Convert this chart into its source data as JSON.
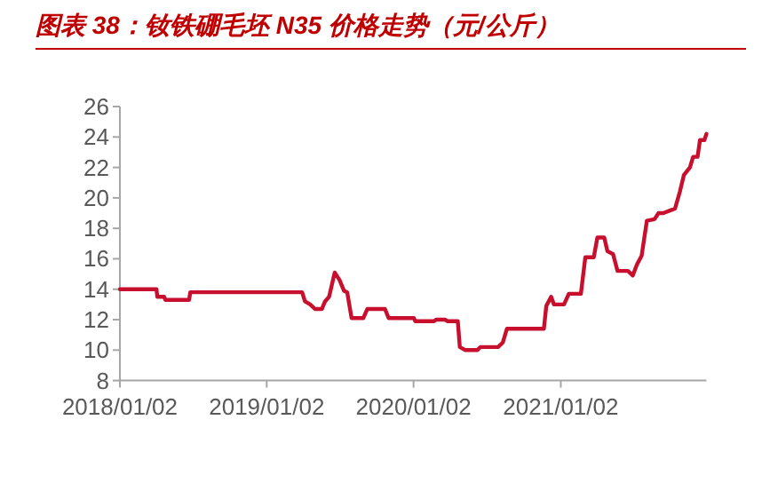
{
  "chart_data": {
    "type": "line",
    "title": "图表 38：钕铁硼毛坯 N35 价格走势（元/公斤）",
    "x": [
      "2018-01-02",
      "2018-04-03",
      "2018-04-05",
      "2018-04-22",
      "2018-04-25",
      "2018-06-23",
      "2018-06-26",
      "2019-03-31",
      "2019-04-07",
      "2019-04-20",
      "2019-05-02",
      "2019-05-19",
      "2019-05-27",
      "2019-06-06",
      "2019-06-20",
      "2019-07-02",
      "2019-07-13",
      "2019-07-21",
      "2019-08-01",
      "2019-08-30",
      "2019-09-09",
      "2019-10-23",
      "2019-11-01",
      "2020-01-03",
      "2020-01-06",
      "2020-02-22",
      "2020-02-27",
      "2020-03-20",
      "2020-03-27",
      "2020-04-21",
      "2020-04-26",
      "2020-05-10",
      "2020-06-09",
      "2020-06-16",
      "2020-07-30",
      "2020-08-11",
      "2020-08-21",
      "2020-11-21",
      "2020-11-27",
      "2020-12-09",
      "2020-12-16",
      "2021-01-10",
      "2021-01-22",
      "2021-02-21",
      "2021-03-04",
      "2021-03-25",
      "2021-04-03",
      "2021-04-20",
      "2021-04-28",
      "2021-05-12",
      "2021-05-23",
      "2021-06-18",
      "2021-06-30",
      "2021-07-10",
      "2021-07-22",
      "2021-08-04",
      "2021-08-23",
      "2021-09-02",
      "2021-09-14",
      "2021-10-13",
      "2021-10-25",
      "2021-11-04",
      "2021-11-19",
      "2021-11-27",
      "2021-12-08",
      "2021-12-14",
      "2021-12-25",
      "2021-12-30"
    ],
    "series": [
      {
        "color": "#c8102e",
        "values": [
          14.0,
          14.0,
          13.5,
          13.5,
          13.3,
          13.3,
          13.8,
          13.8,
          13.2,
          13.0,
          12.7,
          12.7,
          13.2,
          13.5,
          15.1,
          14.6,
          13.9,
          13.8,
          12.1,
          12.1,
          12.7,
          12.7,
          12.1,
          12.1,
          11.9,
          11.9,
          12.0,
          12.0,
          11.9,
          11.9,
          10.2,
          10.0,
          10.0,
          10.2,
          10.2,
          10.5,
          11.4,
          11.4,
          12.9,
          13.5,
          13.0,
          13.0,
          13.7,
          13.7,
          16.1,
          16.1,
          17.4,
          17.4,
          16.5,
          16.3,
          15.2,
          15.2,
          14.9,
          15.6,
          16.2,
          18.5,
          18.6,
          19.0,
          19.0,
          19.3,
          20.4,
          21.5,
          22.0,
          22.7,
          22.7,
          23.8,
          23.8,
          24.2
        ]
      }
    ],
    "xlim": [
      "2018-01-02",
      "2021-12-30"
    ],
    "xticks": [
      {
        "value": "2018-01-02",
        "label": "2018/01/02"
      },
      {
        "value": "2019-01-02",
        "label": "2019/01/02"
      },
      {
        "value": "2020-01-02",
        "label": "2020/01/02"
      },
      {
        "value": "2021-01-02",
        "label": "2021/01/02"
      }
    ],
    "ylim": [
      8,
      26
    ],
    "yticks": [
      8,
      10,
      12,
      14,
      16,
      18,
      20,
      22,
      24,
      26
    ],
    "grid": false
  }
}
